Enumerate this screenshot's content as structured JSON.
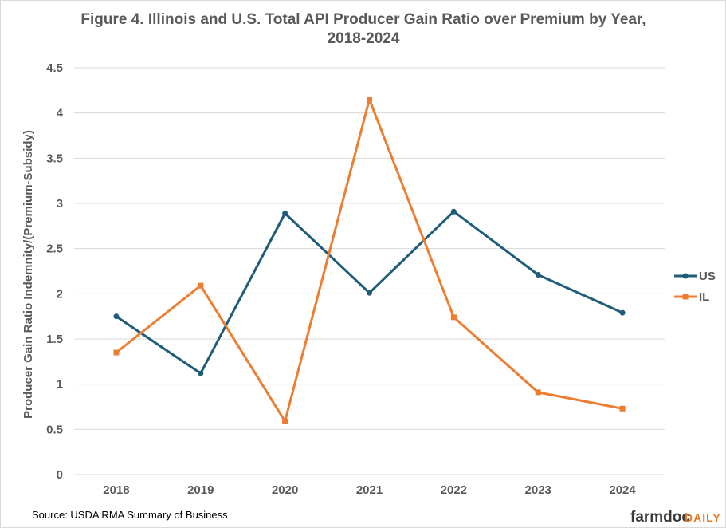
{
  "chart_data": {
    "type": "line",
    "title_line1": "Figure 4. Illinois and U.S.  Total API Producer Gain Ratio over Premium by Year,",
    "title_line2": "2018-2024",
    "xlabel": "",
    "ylabel": "Producer Gain Ratio  Indemnity/(Premium-Subsidy)",
    "categories": [
      "2018",
      "2019",
      "2020",
      "2021",
      "2022",
      "2023",
      "2024"
    ],
    "ylim": [
      0,
      4.5
    ],
    "yticks": [
      0,
      0.5,
      1,
      1.5,
      2,
      2.5,
      3,
      3.5,
      4,
      4.5
    ],
    "ytick_labels": [
      "0",
      "0.5",
      "1",
      "1.5",
      "2",
      "2.5",
      "3",
      "3.5",
      "4",
      "4.5"
    ],
    "grid": true,
    "legend_position": "right",
    "series": [
      {
        "name": "US",
        "color": "#1f5c7a",
        "marker": "circle",
        "values": [
          1.75,
          1.12,
          2.89,
          2.01,
          2.91,
          2.21,
          1.79
        ]
      },
      {
        "name": "IL",
        "color": "#ed7d31",
        "marker": "square",
        "values": [
          1.35,
          2.09,
          0.59,
          4.15,
          1.74,
          0.91,
          0.73
        ]
      }
    ]
  },
  "footer": {
    "source": "Source: USDA  RMA Summary of Business",
    "brand_main": "farmdoc",
    "brand_accent": "DAILY"
  },
  "colors": {
    "grid": "#d9d9d9",
    "text": "#595959"
  }
}
